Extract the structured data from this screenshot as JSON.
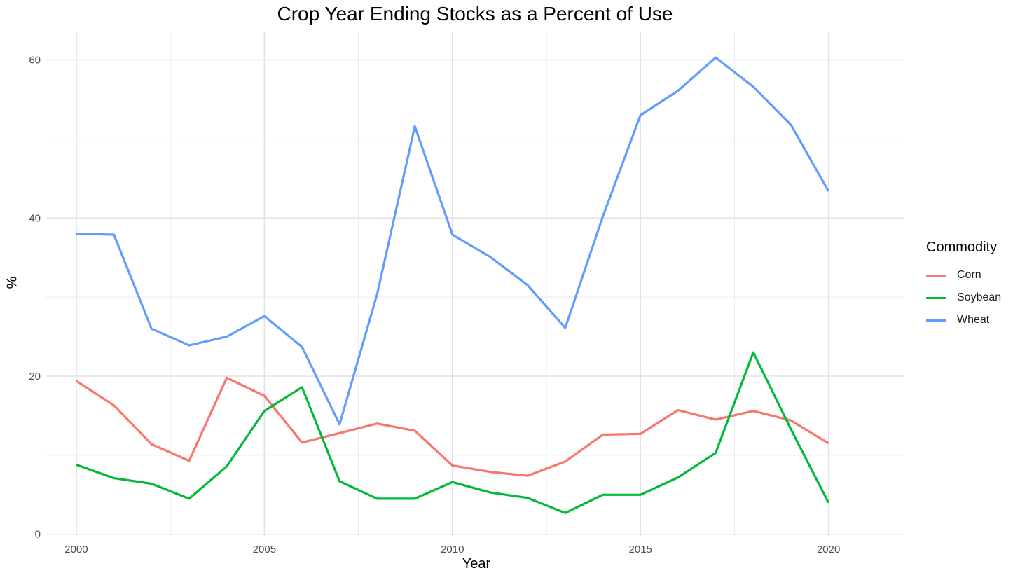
{
  "chart_data": {
    "type": "line",
    "title": "Crop Year Ending Stocks as a Percent of Use",
    "xlabel": "Year",
    "ylabel": "%",
    "xlim": [
      1999.2,
      2022
    ],
    "ylim": [
      -0.2,
      63.5
    ],
    "x_ticks": [
      2000,
      2005,
      2010,
      2015,
      2020
    ],
    "y_ticks": [
      0,
      20,
      40,
      60
    ],
    "x_tick_labels": [
      "2000",
      "2005",
      "2010",
      "2015",
      "2020"
    ],
    "y_tick_labels": [
      "0",
      "20",
      "40",
      "60"
    ],
    "grid": true,
    "legend_position": "right",
    "legend_title": "Commodity",
    "x": [
      2000,
      2001,
      2002,
      2003,
      2004,
      2005,
      2006,
      2007,
      2008,
      2009,
      2010,
      2011,
      2012,
      2013,
      2014,
      2015,
      2016,
      2017,
      2018,
      2019,
      2020
    ],
    "series": [
      {
        "name": "Corn",
        "color": "#F8766D",
        "values": [
          19.4,
          16.3,
          11.4,
          9.3,
          19.8,
          17.5,
          11.6,
          12.8,
          14.0,
          13.1,
          8.7,
          7.9,
          7.4,
          9.2,
          12.6,
          12.7,
          15.7,
          14.5,
          15.6,
          14.4,
          11.5
        ]
      },
      {
        "name": "Soybean",
        "color": "#00BA38",
        "values": [
          8.8,
          7.1,
          6.4,
          4.5,
          8.6,
          15.6,
          18.6,
          6.7,
          4.5,
          4.5,
          6.6,
          5.3,
          4.6,
          2.7,
          5.0,
          5.0,
          7.2,
          10.3,
          23.0,
          13.3,
          4.0
        ]
      },
      {
        "name": "Wheat",
        "color": "#619CFF",
        "values": [
          38.0,
          37.9,
          26.0,
          23.9,
          25.0,
          27.6,
          23.7,
          13.9,
          30.4,
          51.6,
          37.9,
          35.1,
          31.5,
          26.1,
          40.2,
          53.0,
          56.1,
          60.3,
          56.6,
          51.8,
          43.4
        ]
      }
    ]
  }
}
